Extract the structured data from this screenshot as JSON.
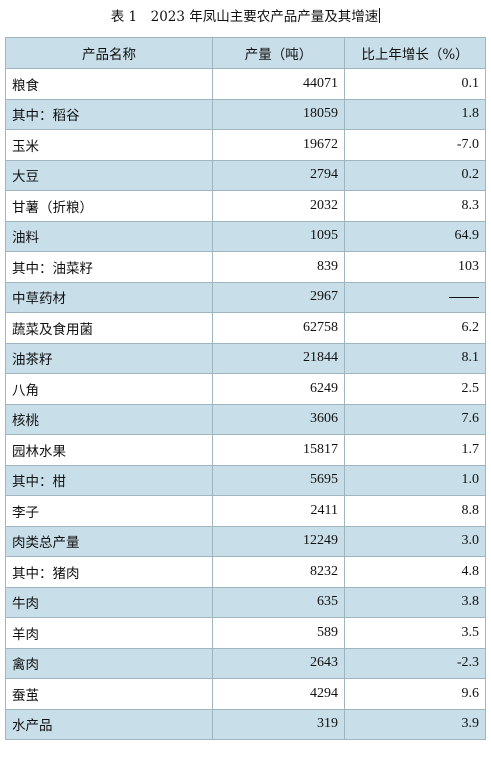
{
  "caption": "表 1　2023 年凤山主要农产品产量及其增速",
  "headers": {
    "name": "产品名称",
    "output": "产量（吨）",
    "growth": "比上年增长（%）"
  },
  "rows": [
    {
      "name": "粮食",
      "level": 0,
      "output": "44071",
      "growth": "0.1"
    },
    {
      "name": "其中：稻谷",
      "level": 1,
      "output": "18059",
      "growth": "1.8"
    },
    {
      "name": "玉米",
      "level": 2,
      "output": "19672",
      "growth": "-7.0"
    },
    {
      "name": "大豆",
      "level": 2,
      "output": "2794",
      "growth": "0.2"
    },
    {
      "name": "甘薯（折粮）",
      "level": 2,
      "output": "2032",
      "growth": "8.3"
    },
    {
      "name": "油料",
      "level": 0,
      "output": "1095",
      "growth": "64.9"
    },
    {
      "name": "其中：油菜籽",
      "level": 1,
      "output": "839",
      "growth": "103"
    },
    {
      "name": "中草药材",
      "level": 0,
      "output": "2967",
      "growth": "—"
    },
    {
      "name": "蔬菜及食用菌",
      "level": 0,
      "output": "62758",
      "growth": "6.2"
    },
    {
      "name": "油茶籽",
      "level": 0,
      "output": "21844",
      "growth": "8.1"
    },
    {
      "name": "八角",
      "level": 0,
      "output": "6249",
      "growth": "2.5"
    },
    {
      "name": "核桃",
      "level": 0,
      "output": "3606",
      "growth": "7.6"
    },
    {
      "name": "园林水果",
      "level": 0,
      "output": "15817",
      "growth": "1.7"
    },
    {
      "name": "其中：柑",
      "level": 1,
      "output": "5695",
      "growth": "1.0"
    },
    {
      "name": "李子",
      "level": 2,
      "output": "2411",
      "growth": "8.8"
    },
    {
      "name": "肉类总产量",
      "level": 0,
      "output": "12249",
      "growth": "3.0"
    },
    {
      "name": "其中：猪肉",
      "level": 1,
      "output": "8232",
      "growth": "4.8"
    },
    {
      "name": "牛肉",
      "level": 2,
      "output": "635",
      "growth": "3.8"
    },
    {
      "name": "羊肉",
      "level": 2,
      "output": "589",
      "growth": "3.5"
    },
    {
      "name": "禽肉",
      "level": 2,
      "output": "2643",
      "growth": "-2.3"
    },
    {
      "name": "蚕茧",
      "level": 0,
      "output": "4294",
      "growth": "9.6"
    },
    {
      "name": "水产品",
      "level": 0,
      "output": "319",
      "growth": "3.9"
    }
  ],
  "colors": {
    "header_bg": "#c8dfe9",
    "stripe_bg": "#c8dfe9",
    "border": "#9fb6c2"
  }
}
